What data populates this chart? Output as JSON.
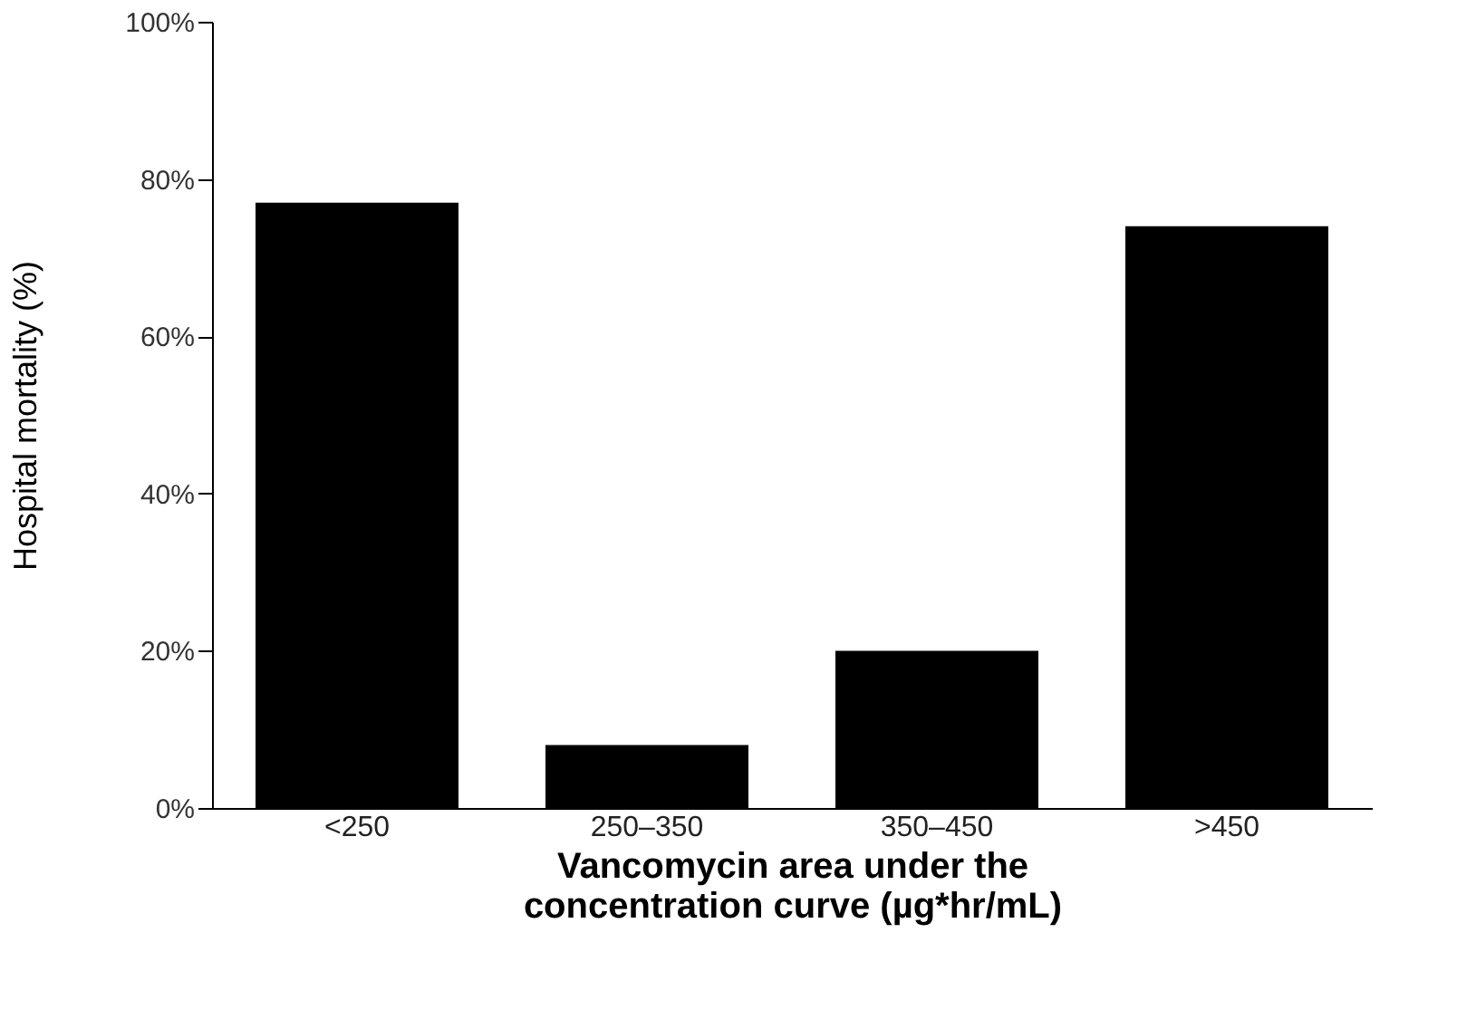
{
  "chart_data": {
    "type": "bar",
    "categories": [
      "<250",
      "250–350",
      "350–450",
      ">450"
    ],
    "values": [
      77,
      8,
      20,
      74
    ],
    "color": "#000000",
    "xlabel": "Vancomycin area under the\nconcentration curve (µg*hr/mL)",
    "ylabel": "Hospital mortality (%)",
    "ylim": [
      0,
      100
    ],
    "yticks": [
      {
        "value": 0,
        "label": "0%"
      },
      {
        "value": 20,
        "label": "20%"
      },
      {
        "value": 40,
        "label": "40%"
      },
      {
        "value": 60,
        "label": "60%"
      },
      {
        "value": 80,
        "label": "80%"
      },
      {
        "value": 100,
        "label": "100%"
      }
    ],
    "grid": false
  }
}
